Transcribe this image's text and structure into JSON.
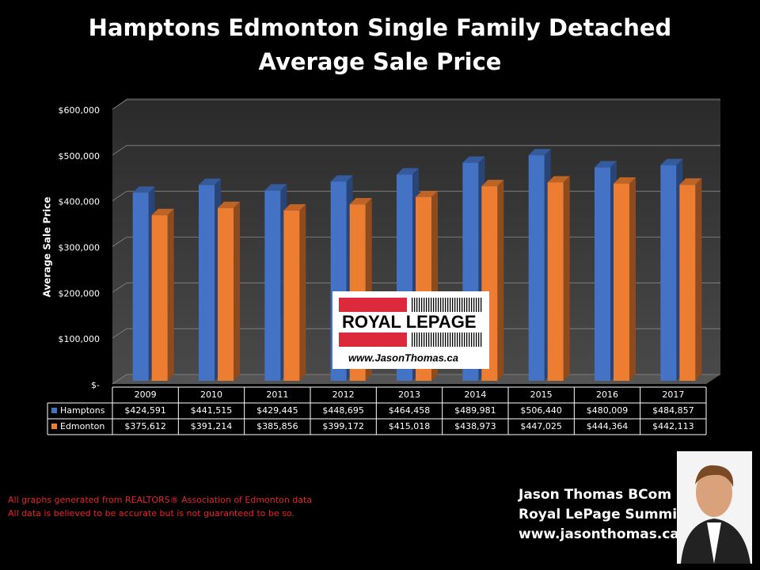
{
  "chart_data": {
    "type": "bar",
    "title": "Hamptons Edmonton Single Family Detached",
    "subtitle": "Average Sale Price",
    "y_label": "Average Sale Price",
    "categories": [
      "2009",
      "2010",
      "2011",
      "2012",
      "2013",
      "2014",
      "2015",
      "2016",
      "2017"
    ],
    "series": [
      {
        "name": "Hamptons",
        "color": "#4472c4",
        "values": [
          424591,
          441515,
          429445,
          448695,
          464458,
          489981,
          506440,
          480009,
          484857
        ],
        "value_labels": [
          "$424,591",
          "$441,515",
          "$429,445",
          "$448,695",
          "$464,458",
          "$489,981",
          "$506,440",
          "$480,009",
          "$484,857"
        ]
      },
      {
        "name": "Edmonton",
        "color": "#ed7d31",
        "values": [
          375612,
          391214,
          385856,
          399172,
          415018,
          438973,
          447025,
          444364,
          442113
        ],
        "value_labels": [
          "$375,612",
          "$391,214",
          "$385,856",
          "$399,172",
          "$415,018",
          "$438,973",
          "$447,025",
          "$444,364",
          "$442,113"
        ]
      }
    ],
    "ylim": [
      0,
      600000
    ],
    "yticks": [
      {
        "value": 0,
        "label": "$-"
      },
      {
        "value": 100000,
        "label": "$100,000"
      },
      {
        "value": 200000,
        "label": "$200,000"
      },
      {
        "value": 300000,
        "label": "$300,000"
      },
      {
        "value": 400000,
        "label": "$400,000"
      },
      {
        "value": 500000,
        "label": "$500,000"
      },
      {
        "value": 600000,
        "label": "$600,000"
      }
    ],
    "grid": true
  },
  "logo": {
    "brand": "ROYAL LEPAGE",
    "url": "www.JasonThomas.ca"
  },
  "footnotes": [
    "All graphs generated from REALTORS® Association of Edmonton data",
    "All data is believed to be accurate but is not guaranteed to be so."
  ],
  "signature": [
    "Jason Thomas BCom",
    "Royal LePage Summit",
    "www.jasonthomas.ca"
  ]
}
